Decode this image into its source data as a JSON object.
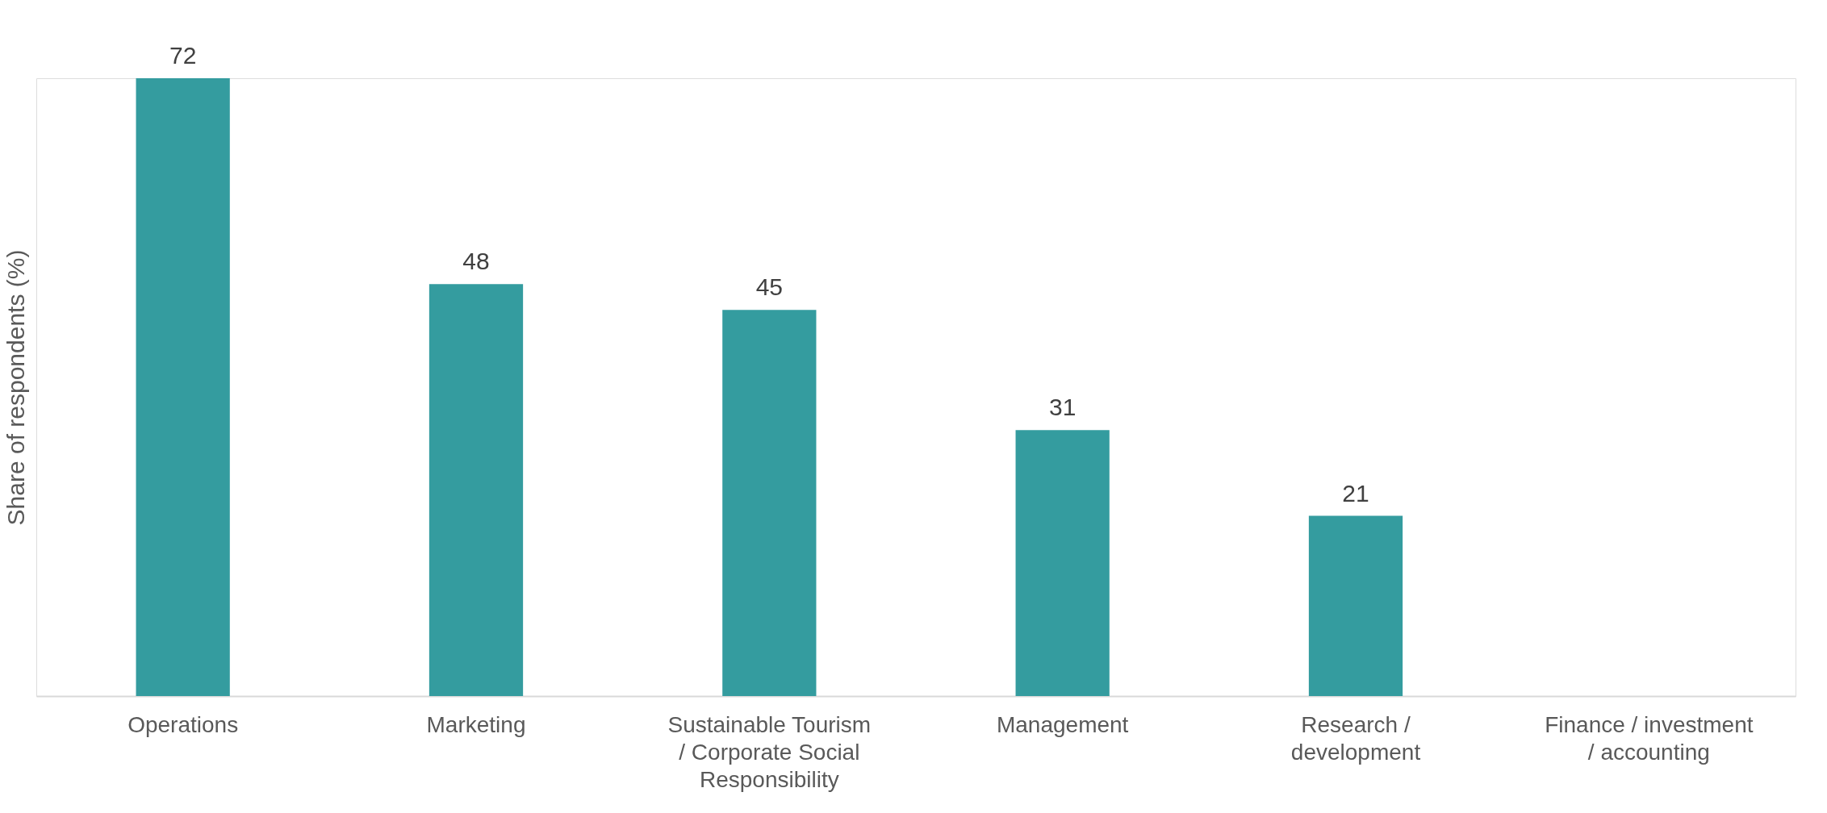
{
  "chart_data": {
    "type": "bar",
    "ylabel": "Share of respondents (%)",
    "categories": [
      "Operations",
      "Marketing",
      "Sustainable Tourism / Corporate Social Responsibility",
      "Management",
      "Research / development",
      "Finance / investment / accounting"
    ],
    "values": [
      72,
      48,
      45,
      31,
      21,
      null
    ],
    "value_labels": [
      "72",
      "48",
      "45",
      "31",
      "21",
      null
    ],
    "color": "#349c9f",
    "grid": false
  }
}
